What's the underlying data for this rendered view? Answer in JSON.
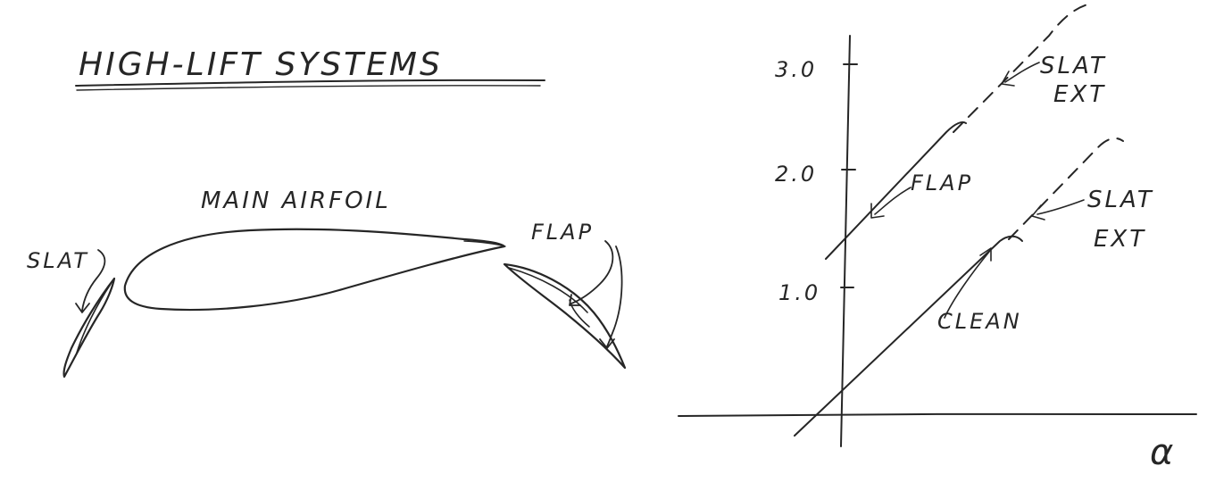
{
  "left_panel": {
    "title": "HIGH-LIFT SYSTEMS",
    "labels": {
      "main_airfoil": "MAIN AIRFOIL",
      "slat": "SLAT",
      "flap": "FLAP"
    }
  },
  "right_panel": {
    "y_ticks": [
      "3.0",
      "2.0",
      "1.0"
    ],
    "x_axis_symbol": "α",
    "curve_labels": {
      "flap": "FLAP",
      "slat_ext_upper_1": "SLAT",
      "slat_ext_upper_2": "EXT",
      "slat_ext_lower_1": "SLAT",
      "slat_ext_lower_2": "EXT",
      "clean": "CLEAN"
    }
  }
}
